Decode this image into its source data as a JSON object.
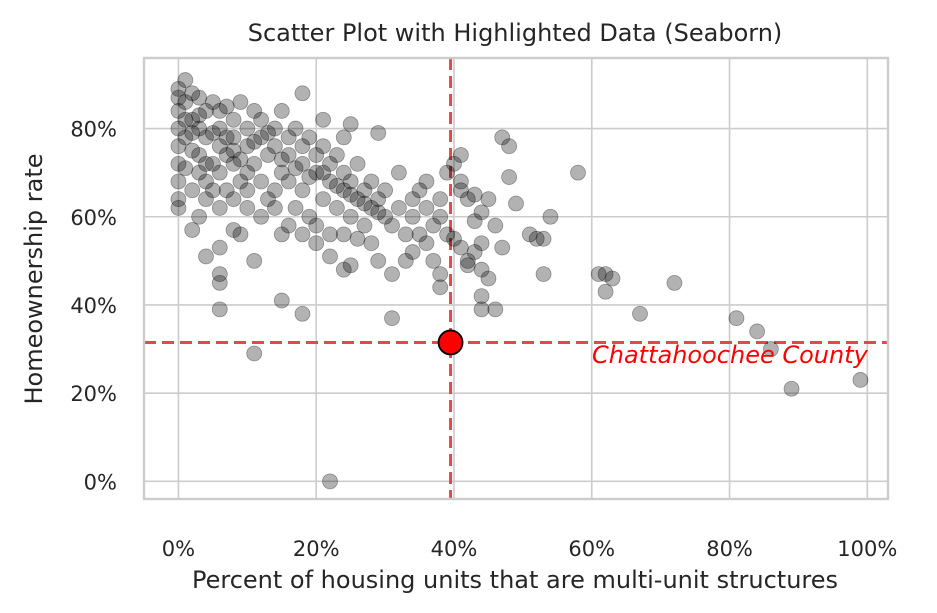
{
  "chart_data": {
    "type": "scatter",
    "title": "Scatter Plot with Highlighted Data (Seaborn)",
    "xlabel": "Percent of housing units that are multi-unit structures",
    "ylabel": "Homeownership rate",
    "xlim": [
      -0.05,
      1.03
    ],
    "ylim": [
      -0.04,
      0.96
    ],
    "x_ticks": [
      0,
      0.2,
      0.4,
      0.6,
      0.8,
      1.0
    ],
    "y_ticks": [
      0,
      0.2,
      0.4,
      0.6,
      0.8
    ],
    "x_tick_labels": [
      "0%",
      "20%",
      "40%",
      "60%",
      "80%",
      "100%"
    ],
    "y_tick_labels": [
      "0%",
      "20%",
      "40%",
      "60%",
      "80%"
    ],
    "grid": true,
    "point_color": "#000000",
    "point_opacity": 0.3,
    "highlight_color": "#ff0000",
    "reference_line_color": "#e8474a",
    "points": [
      [
        0.0,
        0.89
      ],
      [
        0.01,
        0.91
      ],
      [
        0.0,
        0.84
      ],
      [
        0.0,
        0.8
      ],
      [
        0.0,
        0.76
      ],
      [
        0.0,
        0.72
      ],
      [
        0.0,
        0.68
      ],
      [
        0.0,
        0.64
      ],
      [
        0.0,
        0.62
      ],
      [
        0.01,
        0.86
      ],
      [
        0.02,
        0.88
      ],
      [
        0.03,
        0.87
      ],
      [
        0.02,
        0.82
      ],
      [
        0.01,
        0.78
      ],
      [
        0.02,
        0.75
      ],
      [
        0.01,
        0.71
      ],
      [
        0.03,
        0.7
      ],
      [
        0.02,
        0.66
      ],
      [
        0.03,
        0.8
      ],
      [
        0.04,
        0.84
      ],
      [
        0.05,
        0.86
      ],
      [
        0.04,
        0.78
      ],
      [
        0.03,
        0.74
      ],
      [
        0.04,
        0.68
      ],
      [
        0.05,
        0.72
      ],
      [
        0.06,
        0.8
      ],
      [
        0.06,
        0.84
      ],
      [
        0.07,
        0.85
      ],
      [
        0.06,
        0.76
      ],
      [
        0.05,
        0.66
      ],
      [
        0.06,
        0.7
      ],
      [
        0.07,
        0.74
      ],
      [
        0.08,
        0.82
      ],
      [
        0.08,
        0.78
      ],
      [
        0.09,
        0.86
      ],
      [
        0.08,
        0.72
      ],
      [
        0.07,
        0.66
      ],
      [
        0.09,
        0.68
      ],
      [
        0.1,
        0.8
      ],
      [
        0.1,
        0.76
      ],
      [
        0.11,
        0.84
      ],
      [
        0.11,
        0.72
      ],
      [
        0.1,
        0.66
      ],
      [
        0.12,
        0.78
      ],
      [
        0.12,
        0.82
      ],
      [
        0.13,
        0.74
      ],
      [
        0.12,
        0.68
      ],
      [
        0.13,
        0.64
      ],
      [
        0.14,
        0.8
      ],
      [
        0.14,
        0.76
      ],
      [
        0.15,
        0.84
      ],
      [
        0.15,
        0.7
      ],
      [
        0.14,
        0.66
      ],
      [
        0.16,
        0.78
      ],
      [
        0.16,
        0.74
      ],
      [
        0.17,
        0.8
      ],
      [
        0.16,
        0.68
      ],
      [
        0.17,
        0.62
      ],
      [
        0.18,
        0.76
      ],
      [
        0.18,
        0.72
      ],
      [
        0.19,
        0.78
      ],
      [
        0.18,
        0.66
      ],
      [
        0.19,
        0.6
      ],
      [
        0.2,
        0.74
      ],
      [
        0.2,
        0.7
      ],
      [
        0.21,
        0.76
      ],
      [
        0.21,
        0.64
      ],
      [
        0.22,
        0.72
      ],
      [
        0.22,
        0.68
      ],
      [
        0.23,
        0.74
      ],
      [
        0.23,
        0.62
      ],
      [
        0.24,
        0.7
      ],
      [
        0.24,
        0.66
      ],
      [
        0.25,
        0.68
      ],
      [
        0.25,
        0.6
      ],
      [
        0.26,
        0.72
      ],
      [
        0.26,
        0.64
      ],
      [
        0.27,
        0.66
      ],
      [
        0.27,
        0.58
      ],
      [
        0.28,
        0.68
      ],
      [
        0.28,
        0.62
      ],
      [
        0.29,
        0.64
      ],
      [
        0.3,
        0.6
      ],
      [
        0.3,
        0.66
      ],
      [
        0.31,
        0.58
      ],
      [
        0.32,
        0.62
      ],
      [
        0.32,
        0.7
      ],
      [
        0.33,
        0.56
      ],
      [
        0.34,
        0.64
      ],
      [
        0.34,
        0.6
      ],
      [
        0.35,
        0.66
      ],
      [
        0.35,
        0.56
      ],
      [
        0.36,
        0.62
      ],
      [
        0.36,
        0.68
      ],
      [
        0.37,
        0.58
      ],
      [
        0.38,
        0.6
      ],
      [
        0.38,
        0.64
      ],
      [
        0.39,
        0.7
      ],
      [
        0.39,
        0.56
      ],
      [
        0.0,
        0.87
      ],
      [
        0.01,
        0.82
      ],
      [
        0.02,
        0.79
      ],
      [
        0.03,
        0.83
      ],
      [
        0.04,
        0.72
      ],
      [
        0.05,
        0.79
      ],
      [
        0.07,
        0.78
      ],
      [
        0.08,
        0.75
      ],
      [
        0.09,
        0.73
      ],
      [
        0.1,
        0.7
      ],
      [
        0.11,
        0.77
      ],
      [
        0.13,
        0.79
      ],
      [
        0.15,
        0.73
      ],
      [
        0.17,
        0.71
      ],
      [
        0.19,
        0.69
      ],
      [
        0.21,
        0.7
      ],
      [
        0.23,
        0.67
      ],
      [
        0.25,
        0.65
      ],
      [
        0.27,
        0.63
      ],
      [
        0.29,
        0.61
      ],
      [
        0.03,
        0.6
      ],
      [
        0.04,
        0.64
      ],
      [
        0.06,
        0.62
      ],
      [
        0.08,
        0.64
      ],
      [
        0.1,
        0.62
      ],
      [
        0.12,
        0.6
      ],
      [
        0.14,
        0.62
      ],
      [
        0.16,
        0.58
      ],
      [
        0.18,
        0.56
      ],
      [
        0.2,
        0.58
      ],
      [
        0.15,
        0.56
      ],
      [
        0.22,
        0.56
      ],
      [
        0.24,
        0.56
      ],
      [
        0.26,
        0.55
      ],
      [
        0.28,
        0.54
      ],
      [
        0.18,
        0.88
      ],
      [
        0.21,
        0.82
      ],
      [
        0.25,
        0.81
      ],
      [
        0.29,
        0.79
      ],
      [
        0.24,
        0.78
      ],
      [
        0.04,
        0.51
      ],
      [
        0.06,
        0.53
      ],
      [
        0.08,
        0.57
      ],
      [
        0.09,
        0.56
      ],
      [
        0.11,
        0.5
      ],
      [
        0.02,
        0.57
      ],
      [
        0.06,
        0.47
      ],
      [
        0.06,
        0.45
      ],
      [
        0.2,
        0.54
      ],
      [
        0.22,
        0.51
      ],
      [
        0.25,
        0.49
      ],
      [
        0.24,
        0.48
      ],
      [
        0.29,
        0.5
      ],
      [
        0.31,
        0.47
      ],
      [
        0.33,
        0.5
      ],
      [
        0.34,
        0.52
      ],
      [
        0.36,
        0.54
      ],
      [
        0.37,
        0.5
      ],
      [
        0.38,
        0.47
      ],
      [
        0.38,
        0.44
      ],
      [
        0.4,
        0.72
      ],
      [
        0.41,
        0.74
      ],
      [
        0.41,
        0.68
      ],
      [
        0.41,
        0.66
      ],
      [
        0.42,
        0.64
      ],
      [
        0.43,
        0.65
      ],
      [
        0.4,
        0.55
      ],
      [
        0.41,
        0.53
      ],
      [
        0.42,
        0.5
      ],
      [
        0.42,
        0.49
      ],
      [
        0.43,
        0.59
      ],
      [
        0.44,
        0.61
      ],
      [
        0.45,
        0.64
      ],
      [
        0.43,
        0.52
      ],
      [
        0.44,
        0.54
      ],
      [
        0.44,
        0.48
      ],
      [
        0.45,
        0.46
      ],
      [
        0.44,
        0.42
      ],
      [
        0.44,
        0.39
      ],
      [
        0.46,
        0.39
      ],
      [
        0.46,
        0.58
      ],
      [
        0.47,
        0.78
      ],
      [
        0.48,
        0.76
      ],
      [
        0.48,
        0.69
      ],
      [
        0.47,
        0.53
      ],
      [
        0.49,
        0.63
      ],
      [
        0.51,
        0.56
      ],
      [
        0.52,
        0.55
      ],
      [
        0.53,
        0.55
      ],
      [
        0.54,
        0.6
      ],
      [
        0.53,
        0.47
      ],
      [
        0.58,
        0.7
      ],
      [
        0.61,
        0.47
      ],
      [
        0.62,
        0.47
      ],
      [
        0.63,
        0.46
      ],
      [
        0.62,
        0.43
      ],
      [
        0.67,
        0.38
      ],
      [
        0.72,
        0.45
      ],
      [
        0.81,
        0.37
      ],
      [
        0.84,
        0.34
      ],
      [
        0.86,
        0.3
      ],
      [
        0.89,
        0.21
      ],
      [
        0.99,
        0.23
      ],
      [
        0.06,
        0.39
      ],
      [
        0.15,
        0.41
      ],
      [
        0.18,
        0.38
      ],
      [
        0.31,
        0.37
      ],
      [
        0.11,
        0.29
      ],
      [
        0.22,
        0.0
      ]
    ],
    "highlight": {
      "x": 0.395,
      "y": 0.315,
      "label": "Chattahoochee County"
    }
  }
}
